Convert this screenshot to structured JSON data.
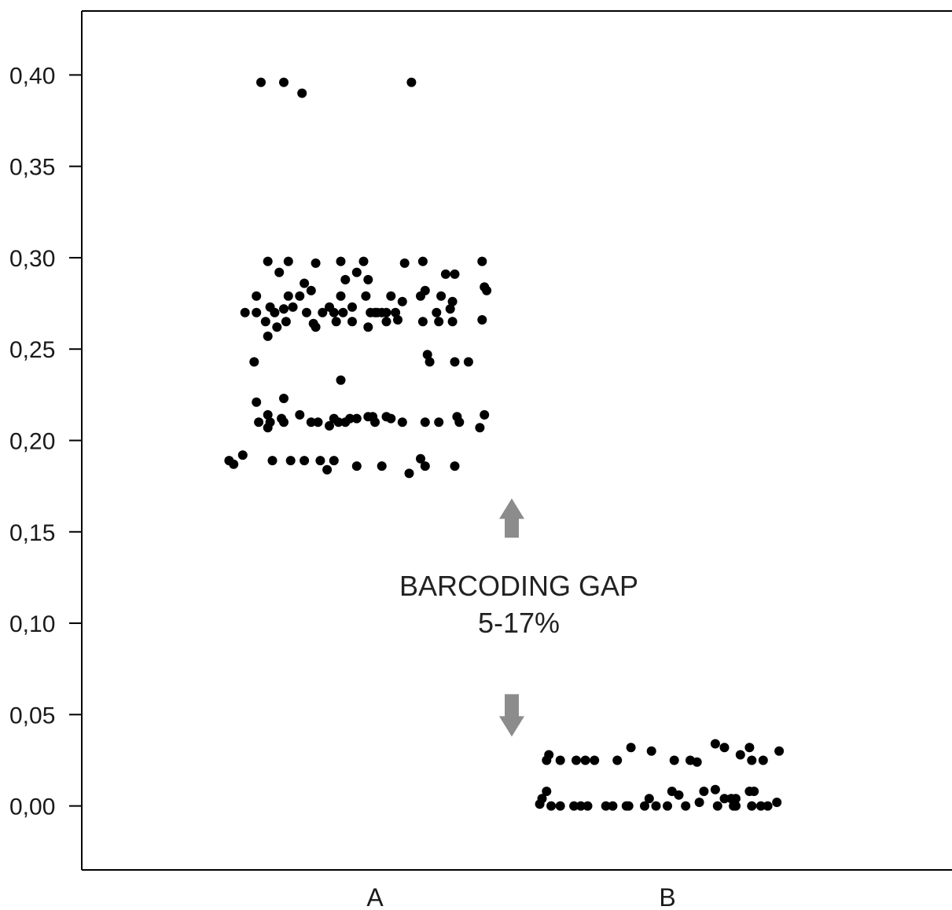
{
  "chart_data": {
    "type": "scatter",
    "title": "",
    "xlabel": "",
    "ylabel": "",
    "categories": [
      "A",
      "B"
    ],
    "ylim": [
      -0.035,
      0.435
    ],
    "yticks": [
      "0,00",
      "0,05",
      "0,10",
      "0,15",
      "0,20",
      "0,25",
      "0,30",
      "0,35",
      "0,40"
    ],
    "ytick_values": [
      0.0,
      0.05,
      0.1,
      0.15,
      0.2,
      0.25,
      0.3,
      0.35,
      0.4
    ],
    "grid": false,
    "legend": "none",
    "marker_color": "#000000",
    "arrow_color": "#8c8c8c",
    "annotation": {
      "line1": "BARCODING GAP",
      "line2": "5-17%",
      "gap_from": 0.05,
      "gap_to": 0.17
    },
    "series": [
      {
        "category": "A",
        "points": [
          [
            -0.5,
            0.396
          ],
          [
            -0.4,
            0.396
          ],
          [
            -0.32,
            0.39
          ],
          [
            0.16,
            0.396
          ],
          [
            -0.47,
            0.298
          ],
          [
            -0.38,
            0.298
          ],
          [
            -0.26,
            0.297
          ],
          [
            -0.15,
            0.298
          ],
          [
            -0.05,
            0.298
          ],
          [
            0.13,
            0.297
          ],
          [
            0.21,
            0.298
          ],
          [
            0.47,
            0.298
          ],
          [
            -0.42,
            0.292
          ],
          [
            -0.08,
            0.292
          ],
          [
            0.31,
            0.291
          ],
          [
            0.35,
            0.291
          ],
          [
            -0.31,
            0.286
          ],
          [
            -0.13,
            0.288
          ],
          [
            -0.03,
            0.288
          ],
          [
            0.48,
            0.284
          ],
          [
            0.49,
            0.282
          ],
          [
            -0.28,
            0.282
          ],
          [
            0.22,
            0.282
          ],
          [
            -0.52,
            0.279
          ],
          [
            -0.38,
            0.279
          ],
          [
            -0.33,
            0.279
          ],
          [
            -0.15,
            0.279
          ],
          [
            -0.04,
            0.279
          ],
          [
            0.07,
            0.279
          ],
          [
            0.2,
            0.279
          ],
          [
            0.29,
            0.279
          ],
          [
            0.34,
            0.276
          ],
          [
            0.12,
            0.276
          ],
          [
            -0.46,
            0.273
          ],
          [
            -0.36,
            0.273
          ],
          [
            -0.2,
            0.273
          ],
          [
            -0.1,
            0.273
          ],
          [
            0.0,
            0.27
          ],
          [
            0.05,
            0.27
          ],
          [
            0.09,
            0.27
          ],
          [
            0.27,
            0.27
          ],
          [
            0.33,
            0.272
          ],
          [
            -0.57,
            0.27
          ],
          [
            -0.52,
            0.27
          ],
          [
            -0.44,
            0.27
          ],
          [
            -0.3,
            0.27
          ],
          [
            -0.23,
            0.27
          ],
          [
            -0.18,
            0.27
          ],
          [
            -0.14,
            0.27
          ],
          [
            -0.02,
            0.27
          ],
          [
            0.01,
            0.27
          ],
          [
            0.03,
            0.27
          ],
          [
            -0.4,
            0.272
          ],
          [
            -0.48,
            0.265
          ],
          [
            -0.39,
            0.265
          ],
          [
            -0.27,
            0.264
          ],
          [
            -0.17,
            0.265
          ],
          [
            -0.1,
            0.265
          ],
          [
            0.05,
            0.265
          ],
          [
            0.1,
            0.266
          ],
          [
            0.21,
            0.265
          ],
          [
            0.28,
            0.265
          ],
          [
            0.34,
            0.265
          ],
          [
            0.47,
            0.266
          ],
          [
            -0.43,
            0.262
          ],
          [
            -0.26,
            0.262
          ],
          [
            -0.03,
            0.262
          ],
          [
            -0.47,
            0.257
          ],
          [
            0.23,
            0.247
          ],
          [
            0.24,
            0.243
          ],
          [
            0.35,
            0.243
          ],
          [
            0.41,
            0.243
          ],
          [
            -0.53,
            0.243
          ],
          [
            -0.15,
            0.233
          ],
          [
            -0.52,
            0.221
          ],
          [
            -0.4,
            0.223
          ],
          [
            -0.51,
            0.21
          ],
          [
            -0.47,
            0.214
          ],
          [
            -0.46,
            0.21
          ],
          [
            -0.41,
            0.212
          ],
          [
            -0.4,
            0.21
          ],
          [
            -0.33,
            0.214
          ],
          [
            -0.28,
            0.21
          ],
          [
            -0.25,
            0.21
          ],
          [
            -0.2,
            0.208
          ],
          [
            -0.18,
            0.212
          ],
          [
            -0.16,
            0.21
          ],
          [
            -0.13,
            0.21
          ],
          [
            -0.11,
            0.212
          ],
          [
            -0.08,
            0.212
          ],
          [
            -0.03,
            0.213
          ],
          [
            -0.01,
            0.213
          ],
          [
            0.0,
            0.21
          ],
          [
            0.05,
            0.213
          ],
          [
            0.07,
            0.212
          ],
          [
            0.12,
            0.21
          ],
          [
            0.22,
            0.21
          ],
          [
            0.28,
            0.21
          ],
          [
            0.37,
            0.21
          ],
          [
            0.36,
            0.213
          ],
          [
            0.46,
            0.207
          ],
          [
            0.48,
            0.214
          ],
          [
            -0.47,
            0.207
          ],
          [
            -0.64,
            0.189
          ],
          [
            -0.62,
            0.187
          ],
          [
            -0.58,
            0.192
          ],
          [
            -0.45,
            0.189
          ],
          [
            -0.37,
            0.189
          ],
          [
            -0.31,
            0.189
          ],
          [
            -0.24,
            0.189
          ],
          [
            -0.18,
            0.189
          ],
          [
            -0.21,
            0.184
          ],
          [
            -0.08,
            0.186
          ],
          [
            0.03,
            0.186
          ],
          [
            0.15,
            0.182
          ],
          [
            0.2,
            0.19
          ],
          [
            0.22,
            0.186
          ],
          [
            0.35,
            0.186
          ]
        ]
      },
      {
        "category": "B",
        "points": [
          [
            -0.53,
            0.025
          ],
          [
            -0.52,
            0.028
          ],
          [
            -0.47,
            0.025
          ],
          [
            -0.4,
            0.025
          ],
          [
            -0.36,
            0.025
          ],
          [
            -0.32,
            0.025
          ],
          [
            -0.22,
            0.025
          ],
          [
            -0.16,
            0.032
          ],
          [
            -0.07,
            0.03
          ],
          [
            0.03,
            0.025
          ],
          [
            0.1,
            0.025
          ],
          [
            0.13,
            0.024
          ],
          [
            0.21,
            0.034
          ],
          [
            0.25,
            0.032
          ],
          [
            0.32,
            0.028
          ],
          [
            0.36,
            0.032
          ],
          [
            0.37,
            0.025
          ],
          [
            0.42,
            0.025
          ],
          [
            0.49,
            0.03
          ],
          [
            -0.55,
            0.004
          ],
          [
            -0.53,
            0.008
          ],
          [
            -0.56,
            0.001
          ],
          [
            -0.51,
            0.0
          ],
          [
            -0.47,
            0.0
          ],
          [
            -0.41,
            0.0
          ],
          [
            -0.38,
            0.0
          ],
          [
            -0.35,
            0.0
          ],
          [
            -0.27,
            0.0
          ],
          [
            -0.24,
            0.0
          ],
          [
            -0.18,
            0.0
          ],
          [
            -0.17,
            0.0
          ],
          [
            -0.1,
            0.0
          ],
          [
            -0.08,
            0.004
          ],
          [
            -0.05,
            0.0
          ],
          [
            0.0,
            0.0
          ],
          [
            0.02,
            0.008
          ],
          [
            0.05,
            0.006
          ],
          [
            0.08,
            0.0
          ],
          [
            0.14,
            0.002
          ],
          [
            0.16,
            0.008
          ],
          [
            0.21,
            0.009
          ],
          [
            0.22,
            0.0
          ],
          [
            0.25,
            0.004
          ],
          [
            0.28,
            0.004
          ],
          [
            0.29,
            0.0
          ],
          [
            0.3,
            0.004
          ],
          [
            0.3,
            0.0
          ],
          [
            0.36,
            0.008
          ],
          [
            0.38,
            0.008
          ],
          [
            0.37,
            0.0
          ],
          [
            0.41,
            0.0
          ],
          [
            0.44,
            0.0
          ],
          [
            0.48,
            0.002
          ]
        ]
      }
    ]
  }
}
